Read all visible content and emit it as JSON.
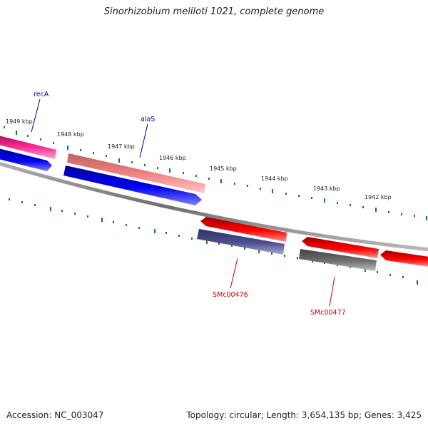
{
  "title": "Sinorhizobium meliloti 1021, complete genome",
  "footer": {
    "accession": "Accession: NC_003047",
    "stats": "Topology: circular; Length: 3,654,135 bp; Genes: 3,425"
  },
  "ruler": {
    "labels": [
      "1949 kbp",
      "1948 kbp",
      "1947 kbp",
      "1946 kbp",
      "1945 kbp",
      "1944 kbp",
      "1943 kbp",
      "1942 kbp"
    ]
  },
  "gene_labels": {
    "recA": "recA",
    "alaS": "alaS",
    "SMc00476": "SMc00476",
    "SMc00477": "SMc00477"
  },
  "colors": {
    "backbone": "#808080",
    "tick": "#1a7a1a",
    "forward_label": "#00008b",
    "reverse_label": "#cc0000",
    "gene_magenta": "#e0207f",
    "gene_pink": "#f08080",
    "gene_blue": "#0000ee",
    "gene_red": "#ee0000",
    "gene_navy": "#484880",
    "gene_gray": "#606060"
  }
}
